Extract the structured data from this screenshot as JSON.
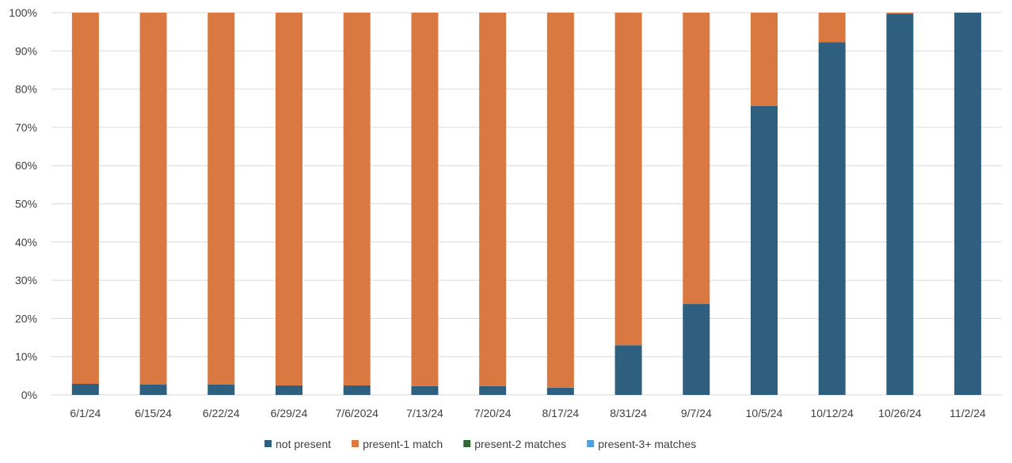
{
  "chart_data": {
    "type": "bar",
    "stacked": "percent",
    "categories": [
      "6/1/24",
      "6/15/24",
      "6/22/24",
      "6/29/24",
      "7/6/2024",
      "7/13/24",
      "7/20/24",
      "8/17/24",
      "8/31/24",
      "9/7/24",
      "10/5/24",
      "10/12/24",
      "10/26/24",
      "11/2/24"
    ],
    "series": [
      {
        "name": "not present",
        "color": "#2E5F7F",
        "values": [
          2.9,
          2.7,
          2.7,
          2.5,
          2.5,
          2.3,
          2.3,
          1.9,
          13.0,
          23.8,
          75.6,
          92.3,
          99.7,
          100
        ]
      },
      {
        "name": "present-1 match",
        "color": "#DA7841",
        "values": [
          97.1,
          97.3,
          97.3,
          97.5,
          97.5,
          97.7,
          97.7,
          98.1,
          87.0,
          76.2,
          24.4,
          7.7,
          0.3,
          0
        ]
      },
      {
        "name": "present-2 matches",
        "color": "#2F6B2F",
        "values": [
          0,
          0,
          0,
          0,
          0,
          0,
          0,
          0,
          0,
          0,
          0,
          0,
          0,
          0
        ]
      },
      {
        "name": "present-3+ matches",
        "color": "#4AA3DF",
        "values": [
          0,
          0,
          0,
          0,
          0,
          0,
          0,
          0,
          0,
          0,
          0,
          0,
          0,
          0
        ]
      }
    ],
    "yticks": [
      "0%",
      "10%",
      "20%",
      "30%",
      "40%",
      "50%",
      "60%",
      "70%",
      "80%",
      "90%",
      "100%"
    ],
    "ylim": [
      0,
      100
    ],
    "grid": true,
    "legend": "bottom"
  }
}
